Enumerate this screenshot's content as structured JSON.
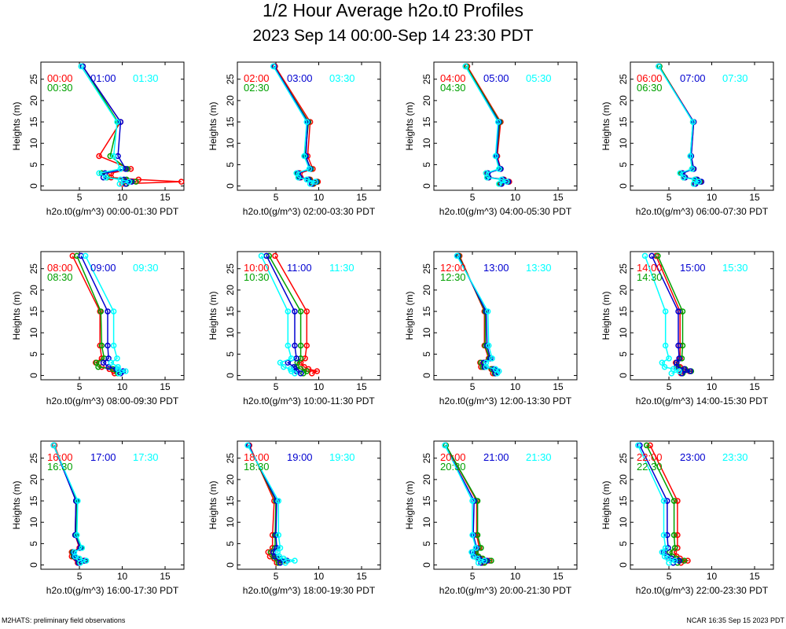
{
  "title_line1": "1/2 Hour Average h2o.t0 Profiles",
  "title_line2": "2023 Sep 14 00:00-Sep 14 23:30 PDT",
  "footer_left": "M2HATS: preliminary field observations",
  "footer_right": "NCAR 16:35 Sep 15 2023 PDT",
  "colors": {
    "red": "#ff0000",
    "green": "#00a000",
    "blue": "#0000d0",
    "cyan": "#00ffff",
    "frame": "#000000"
  },
  "chart_data": {
    "type": "line",
    "heights": [
      0.5,
      1,
      1.5,
      2,
      3,
      4,
      7,
      15,
      28
    ],
    "ylabel": "Heights (m)",
    "ylim": [
      -1,
      29
    ],
    "xlim": [
      0.5,
      17.2
    ],
    "xticks": [
      5,
      10,
      15
    ],
    "yticks": [
      0,
      5,
      10,
      15,
      20,
      25
    ],
    "series_colors": [
      "red",
      "green",
      "blue",
      "cyan"
    ],
    "panels": [
      {
        "xlabel": "h2o.t0(g/m^3) 00:00-01:30 PDT",
        "labels": [
          "00:00",
          "00:30",
          "01:00",
          "01:30"
        ],
        "series": [
          {
            "name": "00:00",
            "values": [
              10.0,
              16.9,
              11.9,
              8.7,
              8.7,
              11.0,
              7.3,
              9.8,
              5.4
            ]
          },
          {
            "name": "00:30",
            "values": [
              10.5,
              11.6,
              10.5,
              8.2,
              7.6,
              10.6,
              8.6,
              9.5,
              5.4
            ]
          },
          {
            "name": "01:00",
            "values": [
              10.4,
              11.1,
              10.2,
              7.8,
              8.0,
              10.4,
              9.5,
              9.8,
              5.4
            ]
          },
          {
            "name": "01:30",
            "values": [
              9.7,
              10.8,
              9.8,
              8.1,
              7.3,
              9.8,
              9.0,
              9.4,
              5.2
            ]
          }
        ]
      },
      {
        "xlabel": "h2o.t0(g/m^3) 02:00-03:30 PDT",
        "labels": [
          "02:00",
          "02:30",
          "03:00",
          "03:30"
        ],
        "series": [
          {
            "name": "02:00",
            "values": [
              9.4,
              9.9,
              9.0,
              7.9,
              7.8,
              9.3,
              8.7,
              9.0,
              4.9
            ]
          },
          {
            "name": "02:30",
            "values": [
              9.3,
              9.8,
              8.9,
              7.7,
              7.5,
              9.1,
              8.4,
              8.8,
              4.8
            ]
          },
          {
            "name": "03:00",
            "values": [
              9.2,
              9.7,
              8.8,
              7.8,
              7.6,
              9.0,
              8.5,
              8.7,
              4.8
            ]
          },
          {
            "name": "03:30",
            "values": [
              9.0,
              9.6,
              8.6,
              7.6,
              7.4,
              8.9,
              8.3,
              8.6,
              4.7
            ]
          }
        ]
      },
      {
        "xlabel": "h2o.t0(g/m^3) 04:00-05:30 PDT",
        "labels": [
          "04:00",
          "04:30",
          "05:00",
          "05:30"
        ],
        "series": [
          {
            "name": "04:00",
            "values": [
              8.3,
              9.3,
              8.7,
              6.9,
              6.7,
              8.3,
              7.9,
              8.3,
              4.4
            ]
          },
          {
            "name": "04:30",
            "values": [
              8.2,
              9.1,
              8.6,
              6.8,
              6.6,
              8.2,
              7.8,
              8.2,
              4.3
            ]
          },
          {
            "name": "05:00",
            "values": [
              8.4,
              9.2,
              8.6,
              6.9,
              6.8,
              8.3,
              7.8,
              8.1,
              4.2
            ]
          },
          {
            "name": "05:30",
            "values": [
              8.1,
              9.0,
              8.4,
              6.7,
              6.6,
              8.1,
              7.7,
              8.0,
              4.2
            ]
          }
        ]
      },
      {
        "xlabel": "h2o.t0(g/m^3) 06:00-07:30 PDT",
        "labels": [
          "06:00",
          "06:30",
          "07:00",
          "07:30"
        ],
        "series": [
          {
            "name": "06:00",
            "values": [
              8.0,
              8.7,
              8.2,
              6.8,
              6.5,
              7.8,
              7.6,
              7.9,
              3.9
            ]
          },
          {
            "name": "06:30",
            "values": [
              7.9,
              8.6,
              8.1,
              6.7,
              6.4,
              7.7,
              7.5,
              7.8,
              3.9
            ]
          },
          {
            "name": "07:00",
            "values": [
              8.1,
              8.8,
              8.3,
              6.9,
              6.6,
              7.9,
              7.6,
              7.9,
              3.8
            ]
          },
          {
            "name": "07:30",
            "values": [
              7.9,
              8.5,
              8.0,
              6.7,
              6.3,
              7.7,
              7.5,
              7.8,
              3.8
            ]
          }
        ]
      },
      {
        "xlabel": "h2o.t0(g/m^3) 08:00-09:30 PDT",
        "labels": [
          "08:00",
          "08:30",
          "09:00",
          "09:30"
        ],
        "series": [
          {
            "name": "08:00",
            "values": [
              9.1,
              9.0,
              8.5,
              7.6,
              6.9,
              7.6,
              7.4,
              7.4,
              4.2
            ]
          },
          {
            "name": "08:30",
            "values": [
              9.5,
              9.4,
              8.9,
              7.2,
              7.0,
              7.9,
              7.6,
              7.5,
              4.7
            ]
          },
          {
            "name": "09:00",
            "values": [
              9.8,
              10.1,
              9.3,
              8.4,
              7.8,
              8.4,
              8.3,
              8.3,
              5.2
            ]
          },
          {
            "name": "09:30",
            "values": [
              9.6,
              10.4,
              9.5,
              9.5,
              8.7,
              9.4,
              9.0,
              9.0,
              5.7
            ]
          }
        ]
      },
      {
        "xlabel": "h2o.t0(g/m^3) 10:00-11:30 PDT",
        "labels": [
          "10:00",
          "10:30",
          "11:00",
          "11:30"
        ],
        "series": [
          {
            "name": "10:00",
            "values": [
              9.2,
              9.8,
              8.8,
              8.3,
              7.9,
              8.4,
              8.6,
              8.6,
              4.9
            ]
          },
          {
            "name": "10:30",
            "values": [
              8.2,
              8.6,
              7.9,
              7.4,
              7.5,
              7.9,
              7.9,
              7.9,
              4.2
            ]
          },
          {
            "name": "11:00",
            "values": [
              7.9,
              7.4,
              7.2,
              7.1,
              6.4,
              7.4,
              7.2,
              7.2,
              3.9
            ]
          },
          {
            "name": "11:30",
            "values": [
              7.2,
              6.8,
              6.7,
              5.9,
              5.5,
              6.8,
              6.4,
              6.4,
              3.3
            ]
          }
        ]
      },
      {
        "xlabel": "h2o.t0(g/m^3) 12:00-13:30 PDT",
        "labels": [
          "12:00",
          "12:30",
          "13:00",
          "13:30"
        ],
        "series": [
          {
            "name": "12:00",
            "values": [
              7.4,
              7.7,
              7.2,
              6.0,
              5.9,
              6.9,
              6.4,
              6.4,
              3.5
            ]
          },
          {
            "name": "12:30",
            "values": [
              7.6,
              7.8,
              7.3,
              6.2,
              6.0,
              7.0,
              6.5,
              6.5,
              3.4
            ]
          },
          {
            "name": "13:00",
            "values": [
              7.7,
              7.9,
              7.5,
              6.4,
              6.3,
              7.1,
              6.7,
              6.6,
              3.3
            ]
          },
          {
            "name": "13:30",
            "values": [
              7.9,
              8.1,
              7.7,
              6.6,
              6.6,
              7.3,
              6.9,
              6.8,
              3.2
            ]
          }
        ]
      },
      {
        "xlabel": "h2o.t0(g/m^3) 14:00-15:30 PDT",
        "labels": [
          "14:00",
          "14:30",
          "15:00",
          "15:30"
        ],
        "series": [
          {
            "name": "14:00",
            "values": [
              6.4,
              7.4,
              6.7,
              6.3,
              5.8,
              6.3,
              6.3,
              6.3,
              3.5
            ]
          },
          {
            "name": "14:30",
            "values": [
              6.6,
              7.6,
              6.9,
              6.1,
              5.9,
              6.5,
              6.6,
              6.6,
              3.7
            ]
          },
          {
            "name": "15:00",
            "values": [
              6.5,
              7.5,
              6.8,
              5.9,
              5.9,
              6.2,
              6.1,
              6.1,
              3.0
            ]
          },
          {
            "name": "15:30",
            "values": [
              5.3,
              6.2,
              5.5,
              4.5,
              4.2,
              5.0,
              4.6,
              4.6,
              2.2
            ]
          }
        ]
      },
      {
        "xlabel": "h2o.t0(g/m^3) 16:00-17:30 PDT",
        "labels": [
          "16:00",
          "16:30",
          "17:00",
          "17:30"
        ],
        "series": [
          {
            "name": "16:00",
            "values": [
              4.8,
              5.5,
              4.6,
              4.1,
              4.1,
              5.0,
              4.5,
              4.6,
              2.1
            ]
          },
          {
            "name": "16:30",
            "values": [
              5.0,
              5.7,
              4.8,
              4.3,
              4.2,
              5.2,
              4.6,
              4.7,
              2.0
            ]
          },
          {
            "name": "17:00",
            "values": [
              4.9,
              5.6,
              4.7,
              4.4,
              4.3,
              5.1,
              4.5,
              4.6,
              2.0
            ]
          },
          {
            "name": "17:30",
            "values": [
              5.1,
              5.8,
              5.0,
              4.5,
              4.4,
              5.3,
              4.7,
              4.8,
              2.0
            ]
          }
        ]
      },
      {
        "xlabel": "h2o.t0(g/m^3) 18:00-19:30 PDT",
        "labels": [
          "18:00",
          "18:30",
          "19:00",
          "19:30"
        ],
        "series": [
          {
            "name": "18:00",
            "values": [
              5.1,
              5.8,
              4.8,
              4.3,
              4.1,
              4.6,
              4.6,
              4.8,
              1.9
            ]
          },
          {
            "name": "18:30",
            "values": [
              5.3,
              6.1,
              5.1,
              4.7,
              4.4,
              4.9,
              4.9,
              5.0,
              1.8
            ]
          },
          {
            "name": "19:00",
            "values": [
              5.5,
              6.3,
              5.4,
              4.9,
              4.7,
              5.1,
              5.0,
              5.1,
              1.8
            ]
          },
          {
            "name": "19:30",
            "values": [
              6.1,
              7.2,
              5.9,
              5.4,
              5.2,
              5.5,
              5.3,
              5.3,
              1.7
            ]
          }
        ]
      },
      {
        "xlabel": "h2o.t0(g/m^3) 20:00-21:30 PDT",
        "labels": [
          "20:00",
          "20:30",
          "21:00",
          "21:30"
        ],
        "series": [
          {
            "name": "20:00",
            "values": [
              6.2,
              7.0,
              6.0,
              5.5,
              5.3,
              5.8,
              5.5,
              5.5,
              1.9
            ]
          },
          {
            "name": "20:30",
            "values": [
              6.4,
              7.2,
              6.2,
              5.7,
              5.4,
              6.0,
              5.6,
              5.6,
              1.9
            ]
          },
          {
            "name": "21:00",
            "values": [
              6.0,
              6.7,
              5.8,
              5.2,
              5.0,
              5.5,
              5.1,
              5.2,
              1.8
            ]
          },
          {
            "name": "21:30",
            "values": [
              5.7,
              6.4,
              5.6,
              5.1,
              4.9,
              5.4,
              5.0,
              5.0,
              1.8
            ]
          }
        ]
      },
      {
        "xlabel": "h2o.t0(g/m^3) 22:00-23:30 PDT",
        "labels": [
          "22:00",
          "22:30",
          "23:00",
          "23:30"
        ],
        "series": [
          {
            "name": "22:00",
            "values": [
              6.4,
              7.2,
              6.3,
              5.9,
              5.6,
              6.0,
              6.0,
              6.0,
              2.8
            ]
          },
          {
            "name": "22:30",
            "values": [
              6.0,
              6.8,
              5.9,
              5.4,
              5.1,
              5.7,
              5.6,
              5.6,
              2.4
            ]
          },
          {
            "name": "23:00",
            "values": [
              5.5,
              6.2,
              5.3,
              4.8,
              4.4,
              4.9,
              4.8,
              4.8,
              1.6
            ]
          },
          {
            "name": "23:30",
            "values": [
              5.0,
              5.7,
              4.9,
              4.5,
              4.2,
              4.6,
              4.4,
              4.4,
              1.4
            ]
          }
        ]
      }
    ]
  }
}
